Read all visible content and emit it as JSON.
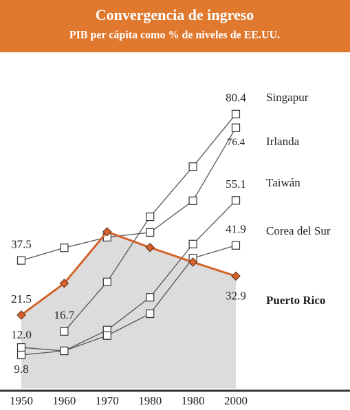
{
  "chart_data": {
    "type": "line",
    "title": "Convergencia de ingreso",
    "subtitle": "PIB per cápita como % de niveles de EE.UU.",
    "categories": [
      "1950",
      "1960",
      "1970",
      "1980",
      "1980",
      "2000"
    ],
    "series": [
      {
        "name": "Singapur",
        "color": "#555555",
        "marker": "square",
        "values": [
          null,
          16.7,
          31.2,
          50.3,
          65.0,
          80.4
        ],
        "value_labels": [
          null,
          "16.7",
          null,
          null,
          null,
          "80.4"
        ]
      },
      {
        "name": "Irlanda",
        "color": "#555555",
        "marker": "square",
        "values": [
          37.5,
          41.2,
          44.3,
          45.7,
          55.0,
          76.4
        ],
        "value_labels": [
          "37.5",
          null,
          null,
          null,
          null,
          "76.4"
        ]
      },
      {
        "name": "Taiwán",
        "color": "#555555",
        "marker": "square",
        "values": [
          12.0,
          11.0,
          17.1,
          26.7,
          42.3,
          55.1
        ],
        "value_labels": [
          "12.0",
          null,
          null,
          null,
          null,
          "55.1"
        ]
      },
      {
        "name": "Corea del Sur",
        "color": "#555555",
        "marker": "square",
        "values": [
          9.8,
          11.0,
          15.5,
          21.9,
          38.2,
          41.9
        ],
        "value_labels": [
          "9.8",
          null,
          null,
          null,
          null,
          "41.9"
        ]
      },
      {
        "name": "Puerto Rico",
        "color": "#d4622a",
        "marker": "diamond",
        "fill": "#dcdcdd",
        "highlight": true,
        "values": [
          21.5,
          30.8,
          45.9,
          41.3,
          37.0,
          32.9
        ],
        "value_labels": [
          "21.5",
          null,
          null,
          null,
          null,
          "32.9"
        ]
      }
    ]
  }
}
